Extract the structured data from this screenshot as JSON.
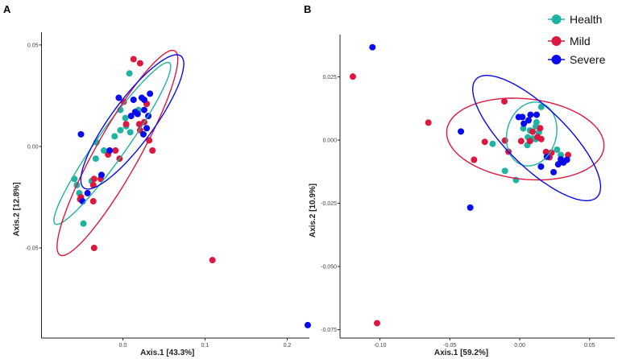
{
  "colors": {
    "Health": "#20B2A2",
    "Mild": "#DC1740",
    "Severe": "#0A0AF0"
  },
  "legend": {
    "position": "top-right",
    "entries": [
      "Health",
      "Mild",
      "Severe"
    ]
  },
  "chart_data": [
    {
      "type": "scatter",
      "panel_label": "A",
      "xlabel": "Axis.1 [43.3%]",
      "ylabel": "Axis.2 [12.8%]",
      "xlim": [
        -0.099,
        0.227
      ],
      "ylim": [
        -0.0944,
        0.0563
      ],
      "xticks": [
        0.0,
        0.1,
        0.2
      ],
      "xtick_labels": [
        "0.0",
        "0.1",
        "0.2"
      ],
      "yticks": [
        0.05,
        0.0,
        -0.05
      ],
      "ytick_labels": [
        "0.05",
        "0.00",
        "-0.05"
      ],
      "grid": false,
      "series": [
        {
          "name": "Health",
          "points": [
            [
              0.008,
              0.036
            ],
            [
              -0.003,
              0.018
            ],
            [
              0.003,
              0.014
            ],
            [
              0.019,
              0.018
            ],
            [
              0.029,
              0.021
            ],
            [
              -0.003,
              0.008
            ],
            [
              0.009,
              0.007
            ],
            [
              -0.01,
              0.005
            ],
            [
              0.004,
              0.01
            ],
            [
              -0.032,
              0.002
            ],
            [
              -0.023,
              -0.002
            ],
            [
              -0.033,
              -0.006
            ],
            [
              -0.059,
              -0.016
            ],
            [
              -0.056,
              -0.019
            ],
            [
              -0.053,
              -0.023
            ],
            [
              -0.038,
              -0.017
            ],
            [
              -0.048,
              -0.038
            ]
          ],
          "ellipse": {
            "center": [
              -0.0128,
              0.0015
            ],
            "major": [
              0.0695,
              0.0397
            ],
            "minor": [
              0.0148,
              -0.0042
            ]
          }
        },
        {
          "name": "Mild",
          "points": [
            [
              0.013,
              0.043
            ],
            [
              0.021,
              0.041
            ],
            [
              0.001,
              0.022
            ],
            [
              0.029,
              0.021
            ],
            [
              0.004,
              0.011
            ],
            [
              0.02,
              0.011
            ],
            [
              0.026,
              0.012
            ],
            [
              0.021,
              0.008
            ],
            [
              0.032,
              0.003
            ],
            [
              0.036,
              -0.002
            ],
            [
              -0.009,
              -0.002
            ],
            [
              -0.018,
              -0.004
            ],
            [
              -0.004,
              -0.006
            ],
            [
              -0.035,
              -0.016
            ],
            [
              -0.027,
              -0.016
            ],
            [
              -0.036,
              -0.019
            ],
            [
              -0.051,
              -0.025
            ],
            [
              -0.052,
              -0.026
            ],
            [
              -0.036,
              -0.027
            ],
            [
              -0.035,
              -0.05
            ],
            [
              0.109,
              -0.056
            ]
          ],
          "ellipse": {
            "center": [
              -0.0066,
              -0.0032
            ],
            "major": [
              0.0698,
              0.0503
            ],
            "minor": [
              0.023,
              -0.0052
            ]
          }
        },
        {
          "name": "Severe",
          "points": [
            [
              -0.051,
              0.006
            ],
            [
              -0.005,
              0.024
            ],
            [
              0.013,
              0.023
            ],
            [
              0.023,
              0.024
            ],
            [
              0.026,
              0.023
            ],
            [
              0.033,
              0.026
            ],
            [
              0.015,
              0.017
            ],
            [
              0.018,
              0.016
            ],
            [
              0.026,
              0.018
            ],
            [
              0.01,
              0.015
            ],
            [
              0.031,
              0.015
            ],
            [
              0.029,
              0.009
            ],
            [
              0.025,
              0.006
            ],
            [
              -0.016,
              -0.002
            ],
            [
              -0.026,
              -0.014
            ],
            [
              -0.043,
              -0.023
            ],
            [
              -0.049,
              -0.027
            ],
            [
              0.225,
              -0.088
            ]
          ],
          "ellipse": {
            "center": [
              0.0115,
              0.0121
            ],
            "major": [
              0.059,
              0.0325
            ],
            "minor": [
              0.021,
              -0.0062
            ]
          }
        }
      ]
    },
    {
      "type": "scatter",
      "panel_label": "B",
      "xlabel": "Axis.1 [59.2%]",
      "ylabel": "Axis.2 [10.9%]",
      "xlim": [
        -0.1286,
        0.068
      ],
      "ylim": [
        -0.0783,
        0.0417
      ],
      "xticks": [
        -0.1,
        -0.05,
        0.0,
        0.05
      ],
      "xtick_labels": [
        "-0.10",
        "-0.05",
        "0.00",
        "0.05"
      ],
      "yticks": [
        0.025,
        0.0,
        -0.025,
        -0.05,
        -0.075
      ],
      "ytick_labels": [
        "0.025",
        "0.000",
        "-0.025",
        "-0.050",
        "-0.075"
      ],
      "grid": false,
      "series": [
        {
          "name": "Health",
          "points": [
            [
              0.0154,
              0.0131
            ],
            [
              0.012,
              0.007
            ],
            [
              0.0115,
              0.0054
            ],
            [
              0.0025,
              0.0046
            ],
            [
              0.0073,
              0.0038
            ],
            [
              0.0137,
              0.003
            ],
            [
              0.0058,
              0.0011
            ],
            [
              0.0092,
              0.0006
            ],
            [
              0.0115,
              0.0004
            ],
            [
              0.0054,
              -0.002
            ],
            [
              -0.0194,
              -0.0015
            ],
            [
              0.0267,
              -0.0038
            ],
            [
              0.0294,
              -0.0059
            ],
            [
              -0.0106,
              -0.0122
            ],
            [
              -0.0027,
              -0.0158
            ]
          ],
          "ellipse": {
            "center": [
              0.0085,
              0.0024
            ],
            "major": [
              0.0058,
              0.0124
            ],
            "minor": [
              0.0171,
              -0.0024
            ]
          }
        },
        {
          "name": "Mild",
          "points": [
            [
              -0.1194,
              0.0251
            ],
            [
              -0.1021,
              -0.0724
            ],
            [
              -0.0654,
              0.0069
            ],
            [
              -0.011,
              0.0153
            ],
            [
              -0.0106,
              -0.0002
            ],
            [
              -0.025,
              -0.0007
            ],
            [
              -0.0081,
              -0.0046
            ],
            [
              -0.0327,
              -0.0078
            ],
            [
              0.001,
              -0.0004
            ],
            [
              0.0073,
              -0.0004
            ],
            [
              0.0092,
              0.0033
            ],
            [
              0.0146,
              0.0047
            ],
            [
              0.0127,
              0.0012
            ],
            [
              0.0154,
              0.0004
            ],
            [
              0.0188,
              -0.0047
            ],
            [
              0.0227,
              -0.005
            ],
            [
              0.0213,
              -0.0068
            ],
            [
              0.0346,
              -0.0059
            ]
          ],
          "ellipse": {
            "center": [
              0.004,
              0.0004
            ],
            "major": [
              0.0562,
              -0.0034
            ],
            "minor": [
              -0.0031,
              -0.0158
            ]
          }
        },
        {
          "name": "Severe",
          "points": [
            [
              -0.1054,
              0.0367
            ],
            [
              -0.0421,
              0.0034
            ],
            [
              -0.0354,
              -0.0267
            ],
            [
              -0.0008,
              0.0091
            ],
            [
              0.0019,
              0.0091
            ],
            [
              0.0077,
              0.01
            ],
            [
              0.0121,
              0.01
            ],
            [
              0.0063,
              0.0078
            ],
            [
              0.0029,
              0.0065
            ],
            [
              0.0194,
              -0.0066
            ],
            [
              0.0152,
              -0.0105
            ],
            [
              0.0242,
              -0.0127
            ],
            [
              0.0275,
              -0.0096
            ],
            [
              0.0294,
              -0.0076
            ],
            [
              0.0313,
              -0.0089
            ],
            [
              0.0338,
              -0.0078
            ]
          ],
          "ellipse": {
            "center": [
              0.0121,
              0.0008
            ],
            "major": [
              0.0433,
              -0.0233
            ],
            "minor": [
              -0.0148,
              -0.0084
            ]
          }
        }
      ]
    }
  ]
}
